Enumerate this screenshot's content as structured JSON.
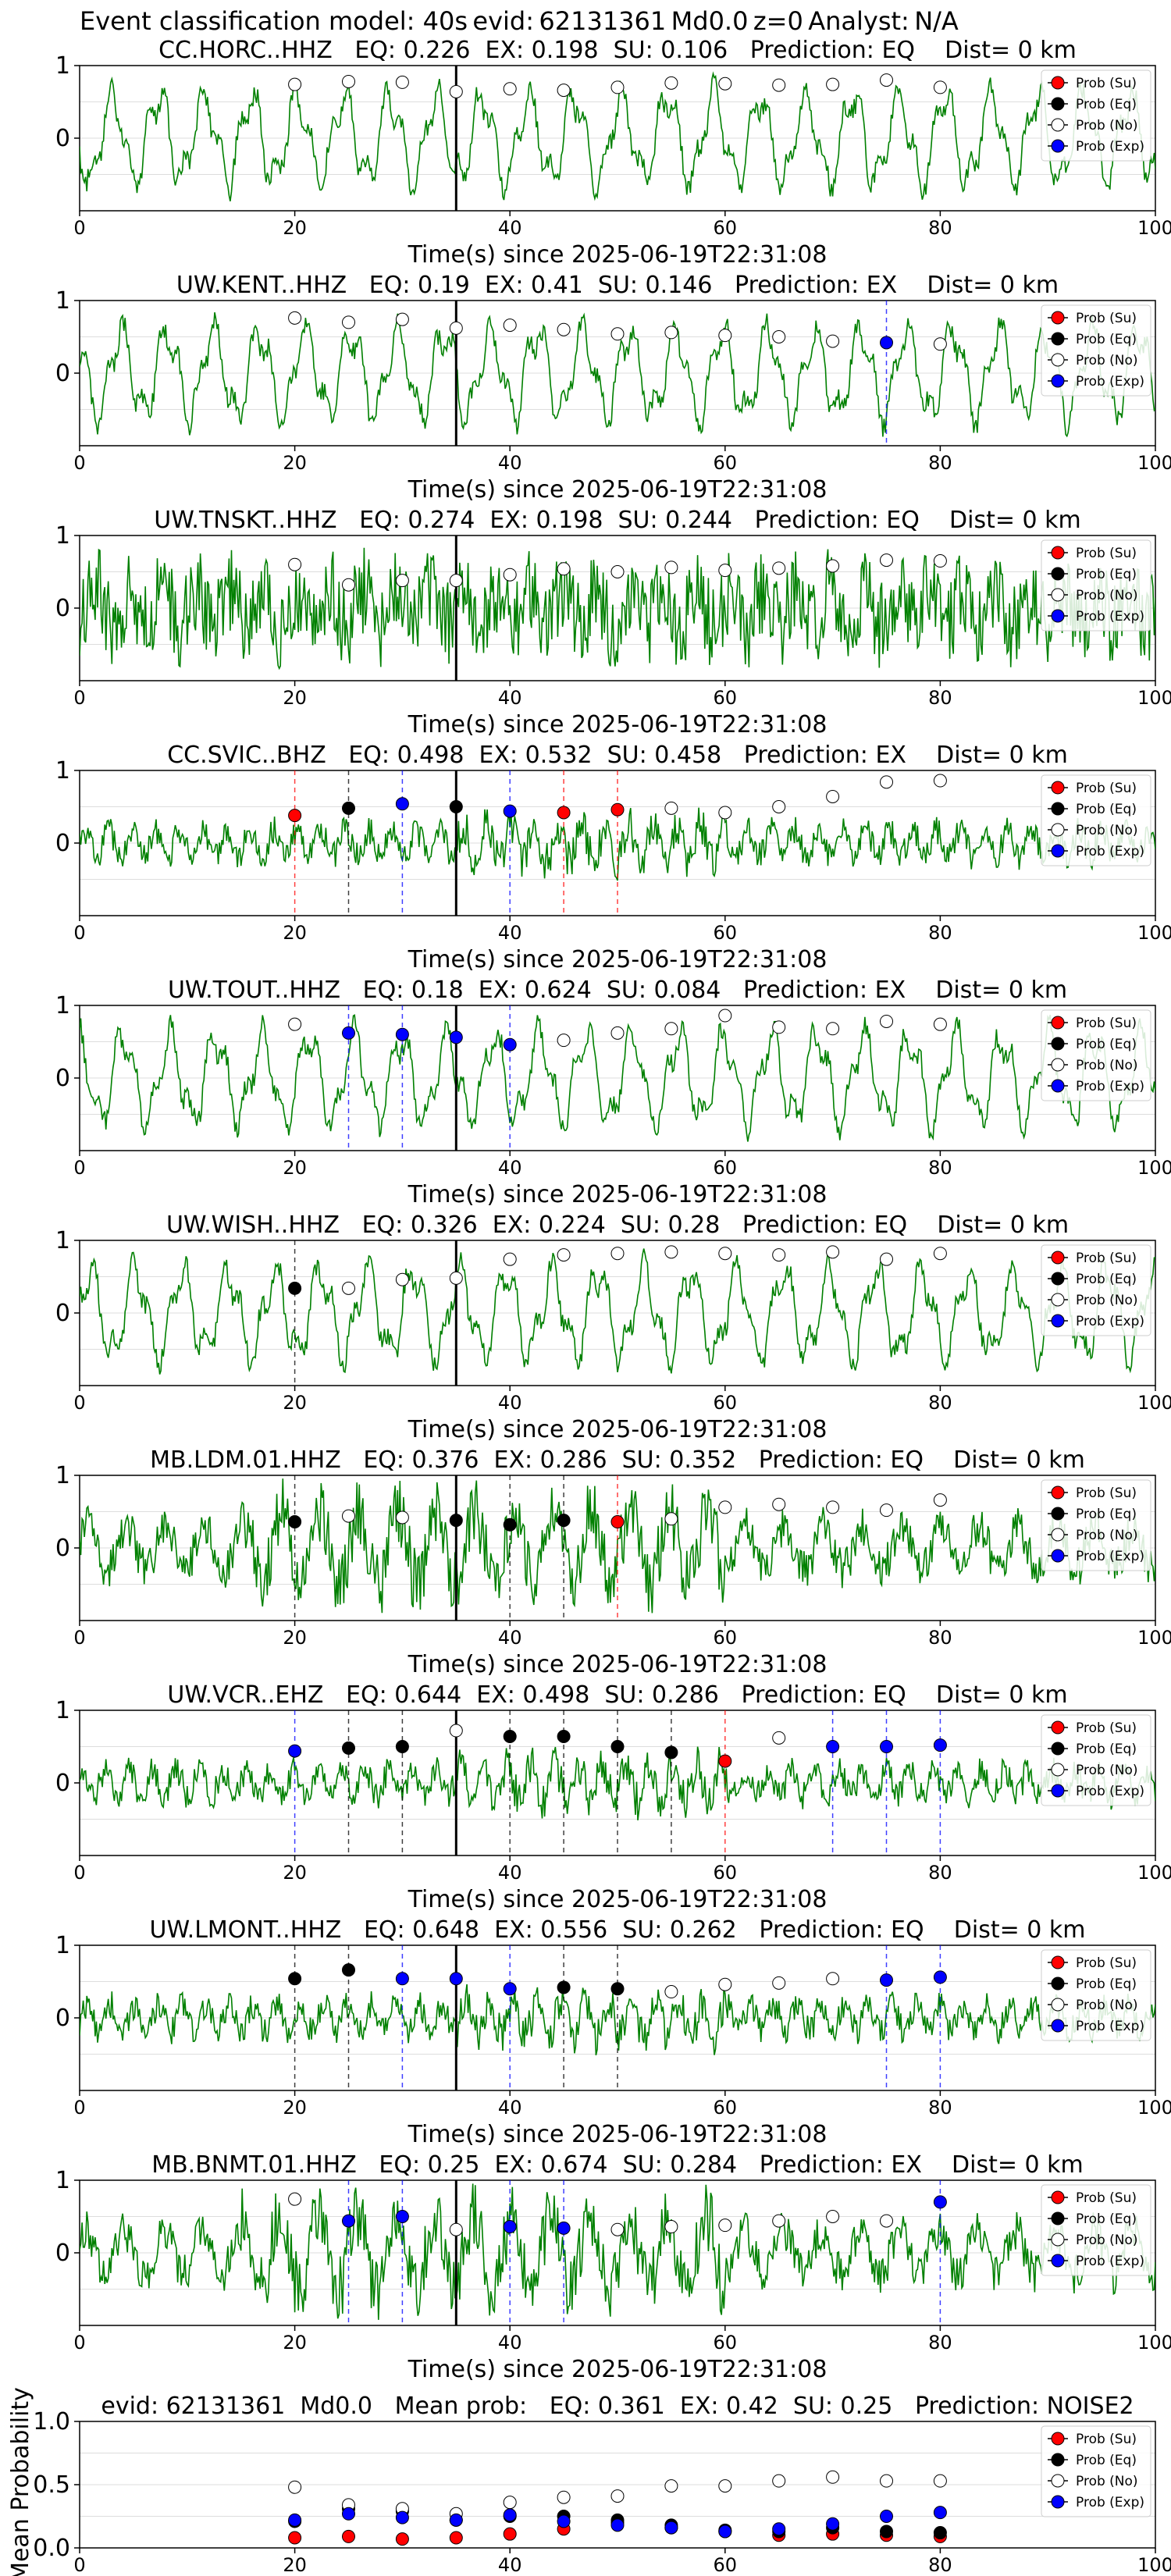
{
  "figure": {
    "title_prefix": "Event classification model: 40s",
    "evid_label": "evid:",
    "evid": "62131361",
    "magnitude": "Md0.0",
    "depth": "z=0",
    "analyst_label": "Analyst:",
    "analyst": "N/A"
  },
  "colors": {
    "trace": "#008000",
    "su": "#ff0000",
    "eq": "#000000",
    "no": "#ffffff",
    "exp": "#0000ff",
    "grid": "#dddddd"
  },
  "legend": [
    "Prob (Su)",
    "Prob (Eq)",
    "Prob (No)",
    "Prob (Exp)"
  ],
  "chart_data": [
    {
      "type": "line",
      "title": "CC.HORC..HHZ   EQ: 0.226  EX: 0.198  SU: 0.106   Prediction: EQ    Dist= 0 km",
      "xlabel": "Time(s) since 2025-06-19T22:31:08",
      "ylabel": "",
      "xlim": [
        0,
        100
      ],
      "ylim": [
        -1,
        1
      ],
      "x_ticks": [
        0,
        20,
        40,
        60,
        80,
        100
      ],
      "y_ticks": [
        0,
        1
      ],
      "grid": true,
      "legend_position": "right",
      "arrival_time": 35,
      "trace_style": "lowfreq",
      "points": {
        "x": [
          20,
          25,
          30,
          35,
          40,
          45,
          50,
          55,
          60,
          65,
          70,
          75,
          80
        ],
        "y": [
          0.74,
          0.78,
          0.77,
          0.64,
          0.68,
          0.66,
          0.7,
          0.76,
          0.75,
          0.73,
          0.74,
          0.8,
          0.7
        ],
        "class": [
          "No",
          "No",
          "No",
          "No",
          "No",
          "No",
          "No",
          "No",
          "No",
          "No",
          "No",
          "No",
          "No"
        ]
      }
    },
    {
      "type": "line",
      "title": "UW.KENT..HHZ   EQ: 0.19  EX: 0.41  SU: 0.146   Prediction: EX    Dist= 0 km",
      "xlabel": "Time(s) since 2025-06-19T22:31:08",
      "ylabel": "",
      "xlim": [
        0,
        100
      ],
      "ylim": [
        -1,
        1
      ],
      "x_ticks": [
        0,
        20,
        40,
        60,
        80,
        100
      ],
      "y_ticks": [
        0,
        1
      ],
      "grid": true,
      "legend_position": "right",
      "arrival_time": 35,
      "trace_style": "lowfreq",
      "points": {
        "x": [
          20,
          25,
          30,
          35,
          40,
          45,
          50,
          55,
          60,
          65,
          70,
          75,
          80
        ],
        "y": [
          0.76,
          0.7,
          0.74,
          0.62,
          0.66,
          0.6,
          0.54,
          0.56,
          0.52,
          0.5,
          0.44,
          0.42,
          0.4
        ],
        "class": [
          "No",
          "No",
          "No",
          "No",
          "No",
          "No",
          "No",
          "No",
          "No",
          "No",
          "No",
          "Exp",
          "No"
        ]
      }
    },
    {
      "type": "line",
      "title": "UW.TNSKT..HHZ   EQ: 0.274  EX: 0.198  SU: 0.244   Prediction: EQ    Dist= 0 km",
      "xlabel": "Time(s) since 2025-06-19T22:31:08",
      "ylabel": "",
      "xlim": [
        0,
        100
      ],
      "ylim": [
        -1,
        1
      ],
      "x_ticks": [
        0,
        20,
        40,
        60,
        80,
        100
      ],
      "y_ticks": [
        0,
        1
      ],
      "grid": true,
      "legend_position": "right",
      "arrival_time": 35,
      "trace_style": "noise",
      "points": {
        "x": [
          20,
          25,
          30,
          35,
          40,
          45,
          50,
          55,
          60,
          65,
          70,
          75,
          80
        ],
        "y": [
          0.6,
          0.32,
          0.38,
          0.38,
          0.46,
          0.54,
          0.5,
          0.56,
          0.52,
          0.55,
          0.58,
          0.66,
          0.65
        ],
        "class": [
          "No",
          "No",
          "No",
          "No",
          "No",
          "No",
          "No",
          "No",
          "No",
          "No",
          "No",
          "No",
          "No"
        ]
      }
    },
    {
      "type": "line",
      "title": "CC.SVIC..BHZ   EQ: 0.498  EX: 0.532  SU: 0.458   Prediction: EX    Dist= 0 km",
      "xlabel": "Time(s) since 2025-06-19T22:31:08",
      "ylabel": "",
      "xlim": [
        0,
        100
      ],
      "ylim": [
        -1,
        1
      ],
      "x_ticks": [
        0,
        20,
        40,
        60,
        80,
        100
      ],
      "y_ticks": [
        0,
        1
      ],
      "grid": true,
      "legend_position": "right",
      "arrival_time": 35,
      "trace_style": "quiet",
      "points": {
        "x": [
          20,
          25,
          30,
          35,
          40,
          45,
          50,
          55,
          60,
          65,
          70,
          75,
          80
        ],
        "y": [
          0.38,
          0.48,
          0.54,
          0.5,
          0.44,
          0.42,
          0.46,
          0.48,
          0.42,
          0.5,
          0.64,
          0.84,
          0.86
        ],
        "class": [
          "Su",
          "Eq",
          "Exp",
          "Eq",
          "Exp",
          "Su",
          "Su",
          "No",
          "No",
          "No",
          "No",
          "No",
          "No"
        ]
      }
    },
    {
      "type": "line",
      "title": "UW.TOUT..HHZ   EQ: 0.18  EX: 0.624  SU: 0.084   Prediction: EX    Dist= 0 km",
      "xlabel": "Time(s) since 2025-06-19T22:31:08",
      "ylabel": "",
      "xlim": [
        0,
        100
      ],
      "ylim": [
        -1,
        1
      ],
      "x_ticks": [
        0,
        20,
        40,
        60,
        80,
        100
      ],
      "y_ticks": [
        0,
        1
      ],
      "grid": true,
      "legend_position": "right",
      "arrival_time": 35,
      "trace_style": "lowfreq",
      "points": {
        "x": [
          20,
          25,
          30,
          35,
          40,
          45,
          50,
          55,
          60,
          65,
          70,
          75,
          80
        ],
        "y": [
          0.74,
          0.62,
          0.6,
          0.56,
          0.46,
          0.52,
          0.62,
          0.68,
          0.86,
          0.7,
          0.68,
          0.78,
          0.74
        ],
        "class": [
          "No",
          "Exp",
          "Exp",
          "Exp",
          "Exp",
          "No",
          "No",
          "No",
          "No",
          "No",
          "No",
          "No",
          "No"
        ]
      }
    },
    {
      "type": "line",
      "title": "UW.WISH..HHZ   EQ: 0.326  EX: 0.224  SU: 0.28   Prediction: EQ    Dist= 0 km",
      "xlabel": "Time(s) since 2025-06-19T22:31:08",
      "ylabel": "",
      "xlim": [
        0,
        100
      ],
      "ylim": [
        -1,
        1
      ],
      "x_ticks": [
        0,
        20,
        40,
        60,
        80,
        100
      ],
      "y_ticks": [
        0,
        1
      ],
      "grid": true,
      "legend_position": "right",
      "arrival_time": 35,
      "trace_style": "lowfreq",
      "points": {
        "x": [
          20,
          25,
          30,
          35,
          40,
          45,
          50,
          55,
          60,
          65,
          70,
          75,
          80
        ],
        "y": [
          0.34,
          0.34,
          0.46,
          0.48,
          0.74,
          0.8,
          0.82,
          0.84,
          0.82,
          0.8,
          0.84,
          0.74,
          0.82
        ],
        "class": [
          "Eq",
          "No",
          "No",
          "No",
          "No",
          "No",
          "No",
          "No",
          "No",
          "No",
          "No",
          "No",
          "No"
        ]
      }
    },
    {
      "type": "line",
      "title": "MB.LDM.01.HHZ   EQ: 0.376  EX: 0.286  SU: 0.352   Prediction: EQ    Dist= 0 km",
      "xlabel": "Time(s) since 2025-06-19T22:31:08",
      "ylabel": "",
      "xlim": [
        0,
        100
      ],
      "ylim": [
        -1,
        1
      ],
      "x_ticks": [
        0,
        20,
        40,
        60,
        80,
        100
      ],
      "y_ticks": [
        0,
        1
      ],
      "grid": true,
      "legend_position": "right",
      "arrival_time": 35,
      "trace_style": "mixed",
      "points": {
        "x": [
          20,
          25,
          30,
          35,
          40,
          45,
          50,
          55,
          60,
          65,
          70,
          75,
          80
        ],
        "y": [
          0.36,
          0.44,
          0.42,
          0.38,
          0.32,
          0.38,
          0.36,
          0.4,
          0.56,
          0.6,
          0.56,
          0.52,
          0.66
        ],
        "class": [
          "Eq",
          "No",
          "No",
          "Eq",
          "Eq",
          "Eq",
          "Su",
          "No",
          "No",
          "No",
          "No",
          "No",
          "No"
        ]
      }
    },
    {
      "type": "line",
      "title": "UW.VCR..EHZ   EQ: 0.644  EX: 0.498  SU: 0.286   Prediction: EQ    Dist= 0 km",
      "xlabel": "Time(s) since 2025-06-19T22:31:08",
      "ylabel": "",
      "xlim": [
        0,
        100
      ],
      "ylim": [
        -1,
        1
      ],
      "x_ticks": [
        0,
        20,
        40,
        60,
        80,
        100
      ],
      "y_ticks": [
        0,
        1
      ],
      "grid": true,
      "legend_position": "right",
      "arrival_time": 35,
      "trace_style": "quiet",
      "points": {
        "x": [
          20,
          25,
          30,
          35,
          40,
          45,
          50,
          55,
          60,
          65,
          70,
          75,
          80
        ],
        "y": [
          0.44,
          0.48,
          0.5,
          0.72,
          0.64,
          0.64,
          0.5,
          0.42,
          0.3,
          0.62,
          0.5,
          0.5,
          0.52
        ],
        "class": [
          "Exp",
          "Eq",
          "Eq",
          "No",
          "Eq",
          "Eq",
          "Eq",
          "Eq",
          "Su",
          "No",
          "Exp",
          "Exp",
          "Exp"
        ]
      }
    },
    {
      "type": "line",
      "title": "UW.LMONT..HHZ   EQ: 0.648  EX: 0.556  SU: 0.262   Prediction: EQ    Dist= 0 km",
      "xlabel": "Time(s) since 2025-06-19T22:31:08",
      "ylabel": "",
      "xlim": [
        0,
        100
      ],
      "ylim": [
        -1,
        1
      ],
      "x_ticks": [
        0,
        20,
        40,
        60,
        80,
        100
      ],
      "y_ticks": [
        0,
        1
      ],
      "grid": true,
      "legend_position": "right",
      "arrival_time": 35,
      "trace_style": "quiet",
      "points": {
        "x": [
          20,
          25,
          30,
          35,
          40,
          45,
          50,
          55,
          60,
          65,
          70,
          75,
          80
        ],
        "y": [
          0.54,
          0.66,
          0.54,
          0.54,
          0.4,
          0.42,
          0.4,
          0.36,
          0.46,
          0.48,
          0.54,
          0.52,
          0.56
        ],
        "class": [
          "Eq",
          "Eq",
          "Exp",
          "Exp",
          "Exp",
          "Eq",
          "Eq",
          "No",
          "No",
          "No",
          "No",
          "Exp",
          "Exp"
        ]
      }
    },
    {
      "type": "line",
      "title": "MB.BNMT.01.HHZ   EQ: 0.25  EX: 0.674  SU: 0.284   Prediction: EX    Dist= 0 km",
      "xlabel": "Time(s) since 2025-06-19T22:31:08",
      "ylabel": "",
      "xlim": [
        0,
        100
      ],
      "ylim": [
        -1,
        1
      ],
      "x_ticks": [
        0,
        20,
        40,
        60,
        80,
        100
      ],
      "y_ticks": [
        0,
        1
      ],
      "grid": true,
      "legend_position": "right",
      "arrival_time": 35,
      "trace_style": "mixed",
      "points": {
        "x": [
          20,
          25,
          30,
          35,
          40,
          45,
          50,
          55,
          60,
          65,
          70,
          75,
          80
        ],
        "y": [
          0.74,
          0.44,
          0.5,
          0.32,
          0.36,
          0.34,
          0.32,
          0.36,
          0.38,
          0.44,
          0.5,
          0.44,
          0.7
        ],
        "class": [
          "No",
          "Exp",
          "Exp",
          "No",
          "Exp",
          "Exp",
          "No",
          "No",
          "No",
          "No",
          "No",
          "No",
          "Exp"
        ]
      }
    },
    {
      "type": "scatter",
      "title": "evid: 62131361  Md0.0   Mean prob:   EQ: 0.361  EX: 0.42  SU: 0.25   Prediction: NOISE2",
      "xlabel": "",
      "ylabel": "Mean Probability",
      "xlim": [
        0,
        100
      ],
      "ylim": [
        0,
        1
      ],
      "x_ticks": [
        0,
        20,
        40,
        60,
        80,
        100
      ],
      "y_ticks": [
        0.0,
        0.5,
        1.0
      ],
      "grid": true,
      "legend_position": "right",
      "x": [
        20,
        25,
        30,
        35,
        40,
        45,
        50,
        55,
        60,
        65,
        70,
        75,
        80
      ],
      "series": [
        {
          "name": "Prob (Su)",
          "class": "Su",
          "values": [
            0.08,
            0.09,
            0.07,
            0.08,
            0.11,
            0.15,
            0.2,
            0.16,
            0.13,
            0.1,
            0.11,
            0.1,
            0.09
          ]
        },
        {
          "name": "Prob (Eq)",
          "class": "Eq",
          "values": [
            0.21,
            0.31,
            0.29,
            0.22,
            0.25,
            0.25,
            0.22,
            0.18,
            0.14,
            0.13,
            0.16,
            0.13,
            0.12
          ]
        },
        {
          "name": "Prob (No)",
          "class": "No",
          "values": [
            0.48,
            0.34,
            0.31,
            0.27,
            0.36,
            0.4,
            0.41,
            0.49,
            0.49,
            0.53,
            0.56,
            0.53,
            0.53
          ]
        },
        {
          "name": "Prob (Exp)",
          "class": "Exp",
          "values": [
            0.22,
            0.27,
            0.24,
            0.22,
            0.26,
            0.21,
            0.18,
            0.16,
            0.13,
            0.15,
            0.19,
            0.25,
            0.28
          ]
        }
      ]
    }
  ]
}
